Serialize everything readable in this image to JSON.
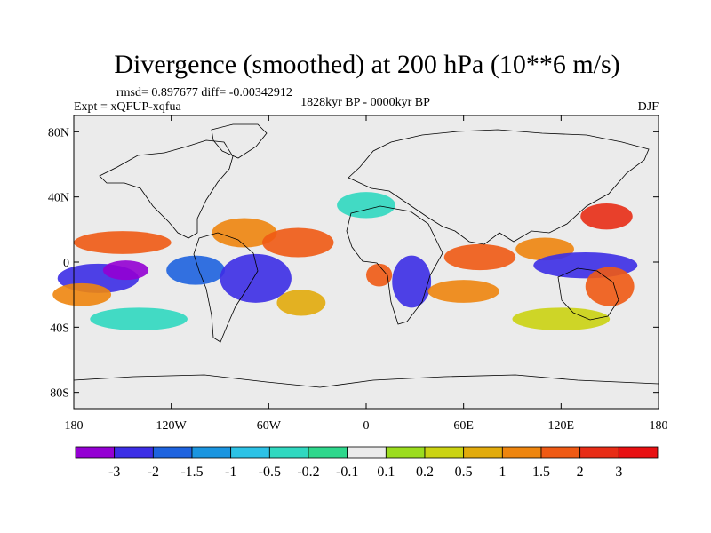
{
  "chart_data": {
    "type": "heatmap",
    "title": "Divergence (smoothed) at 200 hPa (10**6 m/s)",
    "stats_text": "rmsd= 0.897677 diff= -0.00342912",
    "experiment": "Expt = xQFUP-xqfua",
    "period": "1828kyr BP - 0000kyr BP",
    "season": "DJF",
    "x_ticks": [
      "180",
      "120W",
      "60W",
      "0",
      "60E",
      "120E",
      "180"
    ],
    "y_ticks": [
      "80N",
      "40N",
      "0",
      "40S",
      "80S"
    ],
    "x_range": [
      -180,
      180
    ],
    "y_range": [
      -90,
      90
    ],
    "colorbar": {
      "levels": [
        "-3",
        "-2",
        "-1.5",
        "-1",
        "-0.5",
        "-0.2",
        "-0.1",
        "0.1",
        "0.2",
        "0.5",
        "1",
        "1.5",
        "2",
        "3"
      ],
      "colors": [
        "#9400d3",
        "#3c2ee6",
        "#1e63df",
        "#1a95e0",
        "#2cc2e6",
        "#30d8c0",
        "#2ed78c",
        "#ebebeb",
        "#9bdc1e",
        "#cbd312",
        "#e2ab0c",
        "#ee850e",
        "#ef5a14",
        "#e82d16",
        "#e81012"
      ]
    },
    "features": [
      {
        "lon": -165,
        "lat": -10,
        "w": 25,
        "h": 9,
        "bin": 1
      },
      {
        "lon": -148,
        "lat": -5,
        "w": 14,
        "h": 6,
        "bin": 0
      },
      {
        "lon": -150,
        "lat": 12,
        "w": 30,
        "h": 7,
        "bin": 12
      },
      {
        "lon": -175,
        "lat": -20,
        "w": 18,
        "h": 7,
        "bin": 11
      },
      {
        "lon": -105,
        "lat": -5,
        "w": 18,
        "h": 9,
        "bin": 2
      },
      {
        "lon": -68,
        "lat": -10,
        "w": 22,
        "h": 15,
        "bin": 1
      },
      {
        "lon": -75,
        "lat": 18,
        "w": 20,
        "h": 9,
        "bin": 11
      },
      {
        "lon": -42,
        "lat": 12,
        "w": 22,
        "h": 9,
        "bin": 12
      },
      {
        "lon": -40,
        "lat": -25,
        "w": 15,
        "h": 8,
        "bin": 10
      },
      {
        "lon": 28,
        "lat": -12,
        "w": 12,
        "h": 16,
        "bin": 1
      },
      {
        "lon": 8,
        "lat": -8,
        "w": 8,
        "h": 7,
        "bin": 12
      },
      {
        "lon": 70,
        "lat": 3,
        "w": 22,
        "h": 8,
        "bin": 12
      },
      {
        "lon": 110,
        "lat": 8,
        "w": 18,
        "h": 7,
        "bin": 11
      },
      {
        "lon": 148,
        "lat": 28,
        "w": 16,
        "h": 8,
        "bin": 13
      },
      {
        "lon": 135,
        "lat": -2,
        "w": 32,
        "h": 8,
        "bin": 1
      },
      {
        "lon": 60,
        "lat": -18,
        "w": 22,
        "h": 7,
        "bin": 11
      },
      {
        "lon": 120,
        "lat": -35,
        "w": 30,
        "h": 7,
        "bin": 9
      },
      {
        "lon": -140,
        "lat": -35,
        "w": 30,
        "h": 7,
        "bin": 5
      },
      {
        "lon": 0,
        "lat": 35,
        "w": 18,
        "h": 8,
        "bin": 5
      },
      {
        "lon": 150,
        "lat": -15,
        "w": 15,
        "h": 12,
        "bin": 12
      }
    ]
  }
}
